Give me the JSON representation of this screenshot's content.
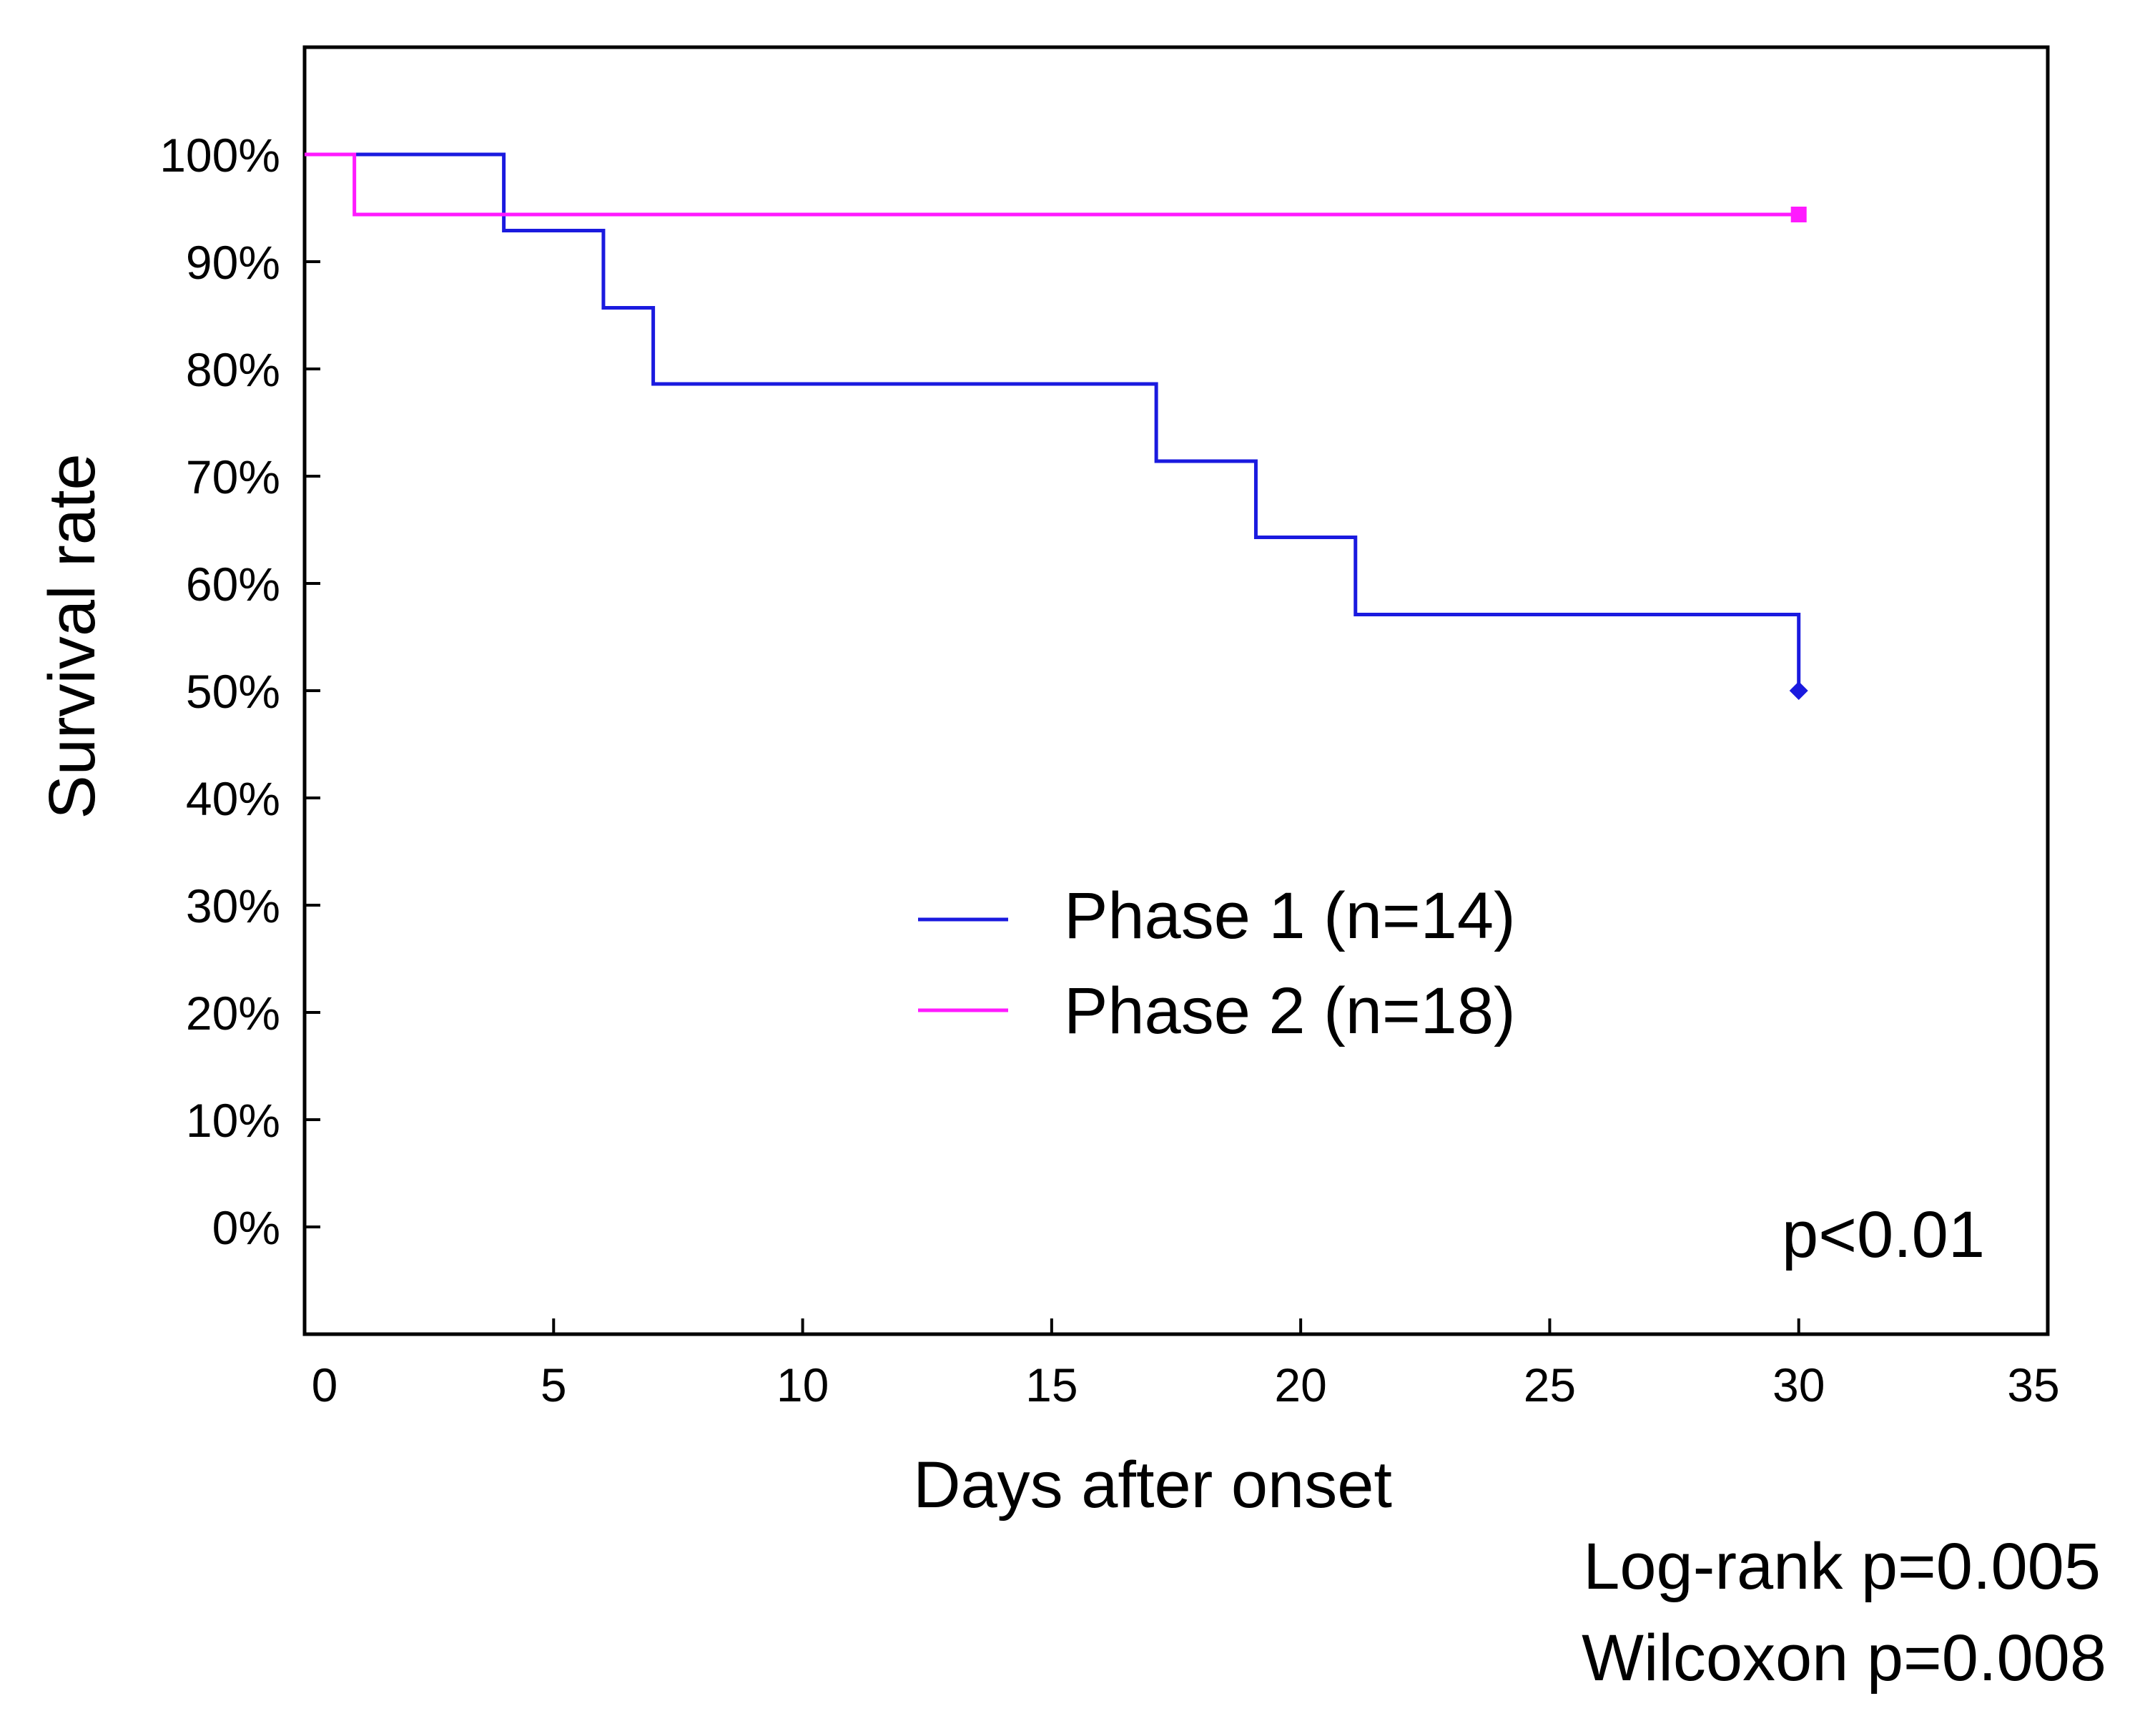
{
  "chart_data": {
    "type": "line",
    "subtype": "kaplan-meier step",
    "xlabel": "Days after onset",
    "ylabel": "Survival rate",
    "xlim": [
      0,
      35
    ],
    "ylim": [
      -10,
      110
    ],
    "x_ticks": [
      0,
      5,
      10,
      15,
      20,
      25,
      30,
      35
    ],
    "y_ticks": [
      0,
      10,
      20,
      30,
      40,
      50,
      60,
      70,
      80,
      90,
      100
    ],
    "y_tick_labels": [
      "0%",
      "10%",
      "20%",
      "30%",
      "40%",
      "50%",
      "60%",
      "70%",
      "80%",
      "90%",
      "100%"
    ],
    "grid": false,
    "legend_position": "center-right",
    "series": [
      {
        "name": "Phase 1 (n=14)",
        "color": "#1a1adf",
        "marker": "diamond",
        "steps": [
          [
            0,
            100
          ],
          [
            4,
            92.9
          ],
          [
            6,
            85.7
          ],
          [
            7,
            78.6
          ],
          [
            17.1,
            71.4
          ],
          [
            19.1,
            64.3
          ],
          [
            21.1,
            57.1
          ],
          [
            30,
            50
          ]
        ],
        "end_x": 30
      },
      {
        "name": "Phase 2 (n=18)",
        "color": "#ff1aff",
        "marker": "square",
        "steps": [
          [
            0,
            100
          ],
          [
            1,
            94.4
          ]
        ],
        "end_x": 30
      }
    ],
    "annotations": {
      "p_value": "p<0.01",
      "log_rank": "Log-rank p=0.005",
      "wilcoxon": "Wilcoxon p=0.008"
    }
  }
}
